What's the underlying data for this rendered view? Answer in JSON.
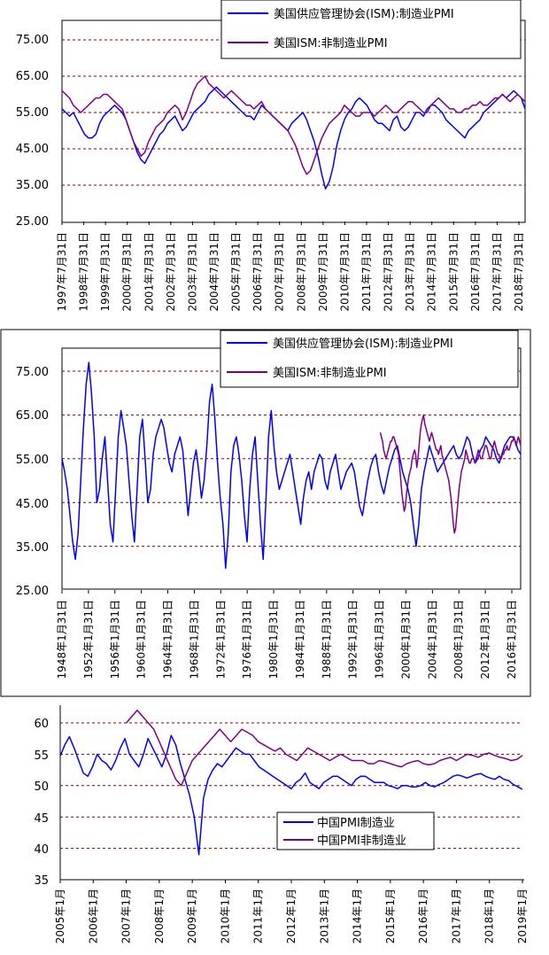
{
  "colors": {
    "manufacturing": "#0000ff",
    "nonmanufacturing": "#800080",
    "grid": "#800000"
  },
  "chart_data": [
    {
      "type": "line",
      "yticks": [
        "75.00",
        "65.00",
        "55.00",
        "45.00",
        "35.00",
        "25.00"
      ],
      "ylim": [
        25,
        80
      ],
      "grid": true,
      "legend_position": "top-right",
      "xticks": [
        "1997年7月31日",
        "1998年7月31日",
        "1999年7月31日",
        "2000年7月31日",
        "2001年7月31日",
        "2002年7月31日",
        "2003年7月31日",
        "2004年7月31日",
        "2005年7月31日",
        "2006年7月31日",
        "2007年7月31日",
        "2008年7月31日",
        "2009年7月31日",
        "2010年7月31日",
        "2011年7月31日",
        "2012年7月31日",
        "2013年7月31日",
        "2014年7月31日",
        "2015年7月31日",
        "2016年7月31日",
        "2017年7月31日",
        "2018年7月31日"
      ],
      "series": [
        {
          "name": "美国供应管理协会(ISM):制造业PMI",
          "x_start": 1997.2,
          "x_end": 2018.9,
          "values": [
            56,
            55,
            54,
            55,
            53,
            51,
            49,
            48,
            48,
            49,
            52,
            54,
            55,
            56,
            57,
            56,
            55,
            53,
            50,
            47,
            44,
            42,
            41,
            43,
            45,
            47,
            49,
            50,
            52,
            53,
            54,
            52,
            50,
            51,
            53,
            55,
            56,
            57,
            58,
            60,
            61,
            62,
            61,
            60,
            59,
            58,
            57,
            56,
            55,
            54,
            54,
            53,
            55,
            57,
            56,
            55,
            54,
            53,
            52,
            51,
            50,
            52,
            53,
            54,
            55,
            53,
            50,
            47,
            43,
            38,
            34,
            36,
            40,
            46,
            50,
            53,
            55,
            56,
            58,
            59,
            58,
            57,
            55,
            53,
            52,
            52,
            51,
            50,
            53,
            54,
            51,
            50,
            51,
            53,
            55,
            55,
            54,
            56,
            57,
            57,
            56,
            55,
            53,
            52,
            51,
            50,
            49,
            48,
            50,
            51,
            52,
            53,
            55,
            56,
            57,
            58,
            59,
            60,
            59,
            60,
            61,
            60,
            59,
            56
          ]
        },
        {
          "name": "美国ISM:非制造业PMI",
          "x_start": 1997.2,
          "x_end": 2018.9,
          "values": [
            61,
            60,
            59,
            57,
            56,
            55,
            56,
            57,
            58,
            59,
            59,
            60,
            60,
            59,
            58,
            57,
            56,
            53,
            50,
            47,
            45,
            43,
            44,
            47,
            49,
            51,
            52,
            53,
            55,
            56,
            57,
            56,
            53,
            55,
            58,
            61,
            63,
            64,
            65,
            63,
            62,
            61,
            60,
            59,
            60,
            61,
            60,
            59,
            58,
            57,
            57,
            56,
            57,
            58,
            56,
            55,
            54,
            53,
            52,
            51,
            50,
            48,
            46,
            43,
            40,
            38,
            39,
            42,
            45,
            48,
            50,
            52,
            53,
            54,
            55,
            57,
            56,
            55,
            54,
            54,
            55,
            55,
            55,
            54,
            55,
            56,
            57,
            56,
            55,
            55,
            56,
            57,
            58,
            58,
            57,
            56,
            55,
            55,
            57,
            58,
            59,
            58,
            57,
            56,
            56,
            55,
            55,
            56,
            56,
            57,
            57,
            58,
            57,
            57,
            58,
            59,
            59,
            60,
            59,
            58,
            59,
            60,
            59,
            58
          ]
        }
      ]
    },
    {
      "type": "line",
      "yticks": [
        "75.00",
        "65.00",
        "55.00",
        "45.00",
        "35.00",
        "25.00"
      ],
      "ylim": [
        25,
        80
      ],
      "grid": true,
      "legend_position": "top-right",
      "xticks": [
        "1948年1月31日",
        "1952年1月31日",
        "1956年1月31日",
        "1960年1月31日",
        "1964年1月31日",
        "1968年1月31日",
        "1972年1月31日",
        "1976年1月31日",
        "1980年1月31日",
        "1984年1月31日",
        "1988年1月31日",
        "1992年1月31日",
        "1996年1月31日",
        "2000年1月31日",
        "2004年1月31日",
        "2008年1月31日",
        "2012年1月31日",
        "2016年1月31日"
      ],
      "series": [
        {
          "name": "美国供应管理协会(ISM):制造业PMI",
          "x_start": 1948.0,
          "x_end": 2018.9,
          "values": [
            55,
            52,
            48,
            42,
            36,
            32,
            38,
            50,
            62,
            72,
            77,
            70,
            60,
            45,
            48,
            55,
            60,
            50,
            40,
            36,
            48,
            60,
            66,
            62,
            58,
            50,
            42,
            36,
            48,
            60,
            64,
            55,
            45,
            48,
            56,
            60,
            62,
            64,
            62,
            58,
            54,
            52,
            56,
            58,
            60,
            57,
            50,
            42,
            48,
            54,
            57,
            52,
            46,
            50,
            58,
            68,
            72,
            64,
            54,
            46,
            40,
            30,
            38,
            52,
            58,
            60,
            56,
            50,
            42,
            36,
            48,
            56,
            60,
            50,
            40,
            32,
            45,
            60,
            66,
            58,
            52,
            48,
            50,
            52,
            54,
            56,
            52,
            48,
            44,
            40,
            46,
            50,
            52,
            48,
            52,
            54,
            56,
            55,
            50,
            48,
            52,
            54,
            56,
            52,
            48,
            50,
            52,
            53,
            54,
            52,
            48,
            44,
            42,
            46,
            50,
            53,
            55,
            56,
            52,
            49,
            47,
            50,
            53,
            55,
            57,
            58,
            55,
            52,
            50,
            48,
            45,
            40,
            35,
            40,
            48,
            52,
            55,
            58,
            56,
            54,
            52,
            53,
            54,
            55,
            56,
            57,
            58,
            56,
            55,
            56,
            58,
            60,
            59,
            56,
            54,
            55,
            57,
            58,
            60,
            59,
            58,
            57,
            55,
            54,
            56,
            58,
            59,
            60,
            60,
            59,
            57,
            56
          ]
        },
        {
          "name": "美国ISM:非制造业PMI",
          "x_start": 1997.2,
          "x_end": 2018.9,
          "values": [
            61,
            60,
            59,
            57,
            56,
            55,
            56,
            57,
            58,
            59,
            59,
            60,
            60,
            59,
            58,
            57,
            56,
            53,
            50,
            47,
            45,
            43,
            44,
            47,
            49,
            51,
            52,
            53,
            55,
            56,
            57,
            56,
            53,
            55,
            58,
            61,
            63,
            64,
            65,
            63,
            62,
            61,
            60,
            59,
            60,
            61,
            60,
            59,
            58,
            57,
            57,
            56,
            57,
            58,
            56,
            55,
            54,
            53,
            52,
            51,
            50,
            48,
            46,
            43,
            40,
            38,
            39,
            42,
            45,
            48,
            50,
            52,
            53,
            54,
            55,
            57,
            56,
            55,
            54,
            54,
            55,
            55,
            55,
            54,
            55,
            56,
            57,
            56,
            55,
            55,
            56,
            57,
            58,
            58,
            57,
            56,
            55,
            55,
            57,
            58,
            59,
            58,
            57,
            56,
            56,
            55,
            55,
            56,
            56,
            57,
            57,
            58,
            57,
            57,
            58,
            59,
            59,
            60,
            59,
            58,
            59,
            60,
            59,
            58
          ]
        }
      ]
    },
    {
      "type": "line",
      "yticks": [
        "60",
        "55",
        "50",
        "45",
        "40",
        "35"
      ],
      "ylim": [
        35,
        62.5
      ],
      "grid": true,
      "legend_position": "bottom-right",
      "xticks": [
        "2005年1月",
        "2006年1月",
        "2007年1月",
        "2008年1月",
        "2009年1月",
        "2010年1月",
        "2011年1月",
        "2012年1月",
        "2013年1月",
        "2014年1月",
        "2015年1月",
        "2016年1月",
        "2017年1月",
        "2018年1月",
        "2019年1月"
      ],
      "series": [
        {
          "name": "中国PMI制造业",
          "x_start": 2005.0,
          "x_end": 2019.0,
          "values": [
            54.7,
            56.5,
            57.8,
            56.0,
            54.0,
            52.0,
            51.5,
            53.0,
            55.0,
            54.0,
            53.5,
            52.5,
            54.0,
            56.0,
            57.5,
            55.0,
            54.0,
            53.0,
            55.0,
            57.5,
            56.0,
            54.5,
            53.0,
            55.0,
            58.0,
            56.5,
            53.5,
            51.0,
            48.4,
            45.0,
            39.0,
            48.0,
            51.0,
            52.5,
            53.5,
            53.0,
            54.0,
            55.0,
            56.0,
            55.5,
            55.0,
            55.0,
            54.0,
            53.0,
            52.5,
            52.0,
            51.5,
            51.0,
            50.5,
            50.0,
            49.5,
            50.5,
            51.0,
            52.0,
            50.5,
            50.0,
            49.5,
            50.5,
            51.0,
            51.5,
            51.5,
            51.0,
            50.5,
            50.0,
            51.0,
            51.5,
            51.5,
            51.0,
            50.5,
            50.5,
            50.5,
            50.0,
            49.8,
            49.5,
            50.0,
            50.0,
            49.8,
            49.8,
            50.0,
            50.5,
            50.0,
            49.8,
            50.2,
            50.5,
            51.0,
            51.5,
            51.7,
            51.5,
            51.2,
            51.5,
            51.8,
            51.9,
            51.5,
            51.2,
            51.0,
            51.5,
            51.0,
            50.8,
            50.2,
            49.8,
            49.4
          ]
        },
        {
          "name": "中国PMI非制造业",
          "x_start": 2007.0,
          "x_end": 2019.0,
          "values": [
            60.0,
            61.0,
            62.0,
            61.0,
            60.0,
            59.0,
            57.0,
            55.0,
            53.0,
            51.0,
            50.0,
            52.0,
            54.0,
            55.0,
            56.0,
            57.0,
            58.0,
            59.0,
            58.0,
            57.0,
            58.0,
            59.0,
            58.5,
            58.0,
            57.0,
            56.5,
            56.0,
            55.5,
            56.0,
            55.0,
            54.5,
            54.0,
            55.0,
            56.0,
            55.5,
            55.0,
            54.5,
            54.0,
            54.5,
            55.0,
            54.5,
            54.0,
            54.0,
            54.0,
            53.5,
            53.5,
            54.0,
            53.8,
            53.5,
            53.2,
            53.0,
            53.5,
            53.8,
            54.0,
            53.5,
            53.3,
            53.5,
            54.0,
            54.3,
            54.5,
            54.0,
            54.5,
            55.0,
            54.8,
            54.5,
            55.0,
            55.2,
            54.8,
            54.5,
            54.3,
            54.0,
            54.2,
            54.8
          ]
        }
      ]
    }
  ]
}
